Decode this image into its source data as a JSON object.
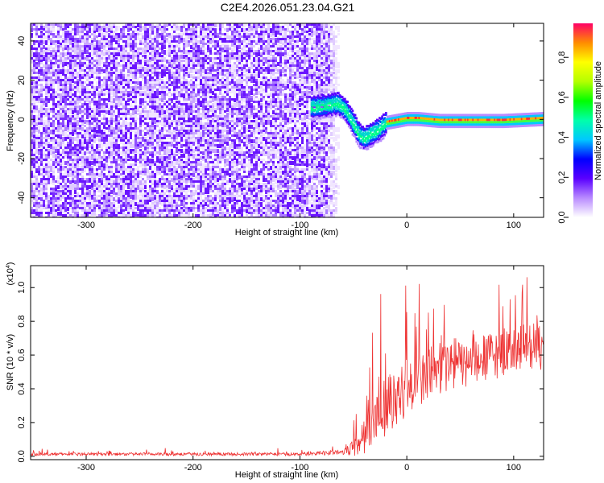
{
  "title": "C2E4.2026.051.23.04.G21",
  "spectrogram": {
    "type": "heatmap",
    "xlabel": "Height of straight line (km)",
    "ylabel": "Frequency (Hz)",
    "xlim": [
      -352,
      128
    ],
    "ylim": [
      -50,
      49
    ],
    "x_ticks": [
      -300,
      -200,
      -100,
      0,
      100
    ],
    "y_ticks": [
      40,
      20,
      0,
      -20,
      -40
    ],
    "x_tick_labels": [
      "-300",
      "-200",
      "-100",
      "0",
      "100"
    ],
    "y_tick_labels": [
      "40",
      "20",
      "0",
      "-20",
      "-40"
    ],
    "noise_region_end_km": -67,
    "signal_track": [
      {
        "x": -90,
        "y": 7
      },
      {
        "x": -75,
        "y": 8
      },
      {
        "x": -65,
        "y": 9
      },
      {
        "x": -58,
        "y": 6
      },
      {
        "x": -50,
        "y": -2
      },
      {
        "x": -45,
        "y": -7
      },
      {
        "x": -40,
        "y": -9
      },
      {
        "x": -35,
        "y": -7
      },
      {
        "x": -28,
        "y": -5
      },
      {
        "x": -20,
        "y": -1
      },
      {
        "x": -10,
        "y": 0
      },
      {
        "x": 0,
        "y": 1
      },
      {
        "x": 10,
        "y": 1
      },
      {
        "x": 30,
        "y": 0
      },
      {
        "x": 60,
        "y": 0
      },
      {
        "x": 90,
        "y": 0
      },
      {
        "x": 128,
        "y": 1
      }
    ],
    "colorbar": {
      "label": "Normalized spectral amplitude",
      "range": [
        0,
        0.97
      ],
      "ticks": [
        0.0,
        0.2,
        0.4,
        0.6,
        0.8
      ],
      "tick_labels": [
        "0.0",
        "0.2",
        "0.4",
        "0.6",
        "0.8"
      ]
    }
  },
  "snr_plot": {
    "type": "line",
    "xlabel": "Height of straight line (km)",
    "ylabel": "SNR (10 * v/v)",
    "multiplier": "(x10",
    "multiplier_exp": "4",
    "multiplier_close": ")",
    "xlim": [
      -352,
      128
    ],
    "ylim": [
      -0.02,
      1.13
    ],
    "x_ticks": [
      -300,
      -200,
      -100,
      0,
      100
    ],
    "y_ticks": [
      0.0,
      0.2,
      0.4,
      0.6,
      0.8,
      1.0
    ],
    "x_tick_labels": [
      "-300",
      "-200",
      "-100",
      "0",
      "100"
    ],
    "y_tick_labels": [
      "0.0",
      "0.2",
      "0.4",
      "0.6",
      "0.8",
      "1.0"
    ],
    "series_color": "#ee3333",
    "envelope": [
      {
        "x": -352,
        "base": 0.01,
        "amp": 0.03
      },
      {
        "x": -100,
        "base": 0.01,
        "amp": 0.03
      },
      {
        "x": -60,
        "base": 0.02,
        "amp": 0.05
      },
      {
        "x": -45,
        "base": 0.05,
        "amp": 0.25
      },
      {
        "x": -35,
        "base": 0.12,
        "amp": 0.45
      },
      {
        "x": -25,
        "base": 0.2,
        "amp": 0.6
      },
      {
        "x": -15,
        "base": 0.28,
        "amp": 0.6
      },
      {
        "x": 0,
        "base": 0.35,
        "amp": 0.55
      },
      {
        "x": 20,
        "base": 0.45,
        "amp": 0.55
      },
      {
        "x": 40,
        "base": 0.5,
        "amp": 0.55
      },
      {
        "x": 60,
        "base": 0.5,
        "amp": 0.45
      },
      {
        "x": 80,
        "base": 0.55,
        "amp": 0.5
      },
      {
        "x": 100,
        "base": 0.6,
        "amp": 0.45
      },
      {
        "x": 128,
        "base": 0.6,
        "amp": 0.5
      }
    ]
  }
}
